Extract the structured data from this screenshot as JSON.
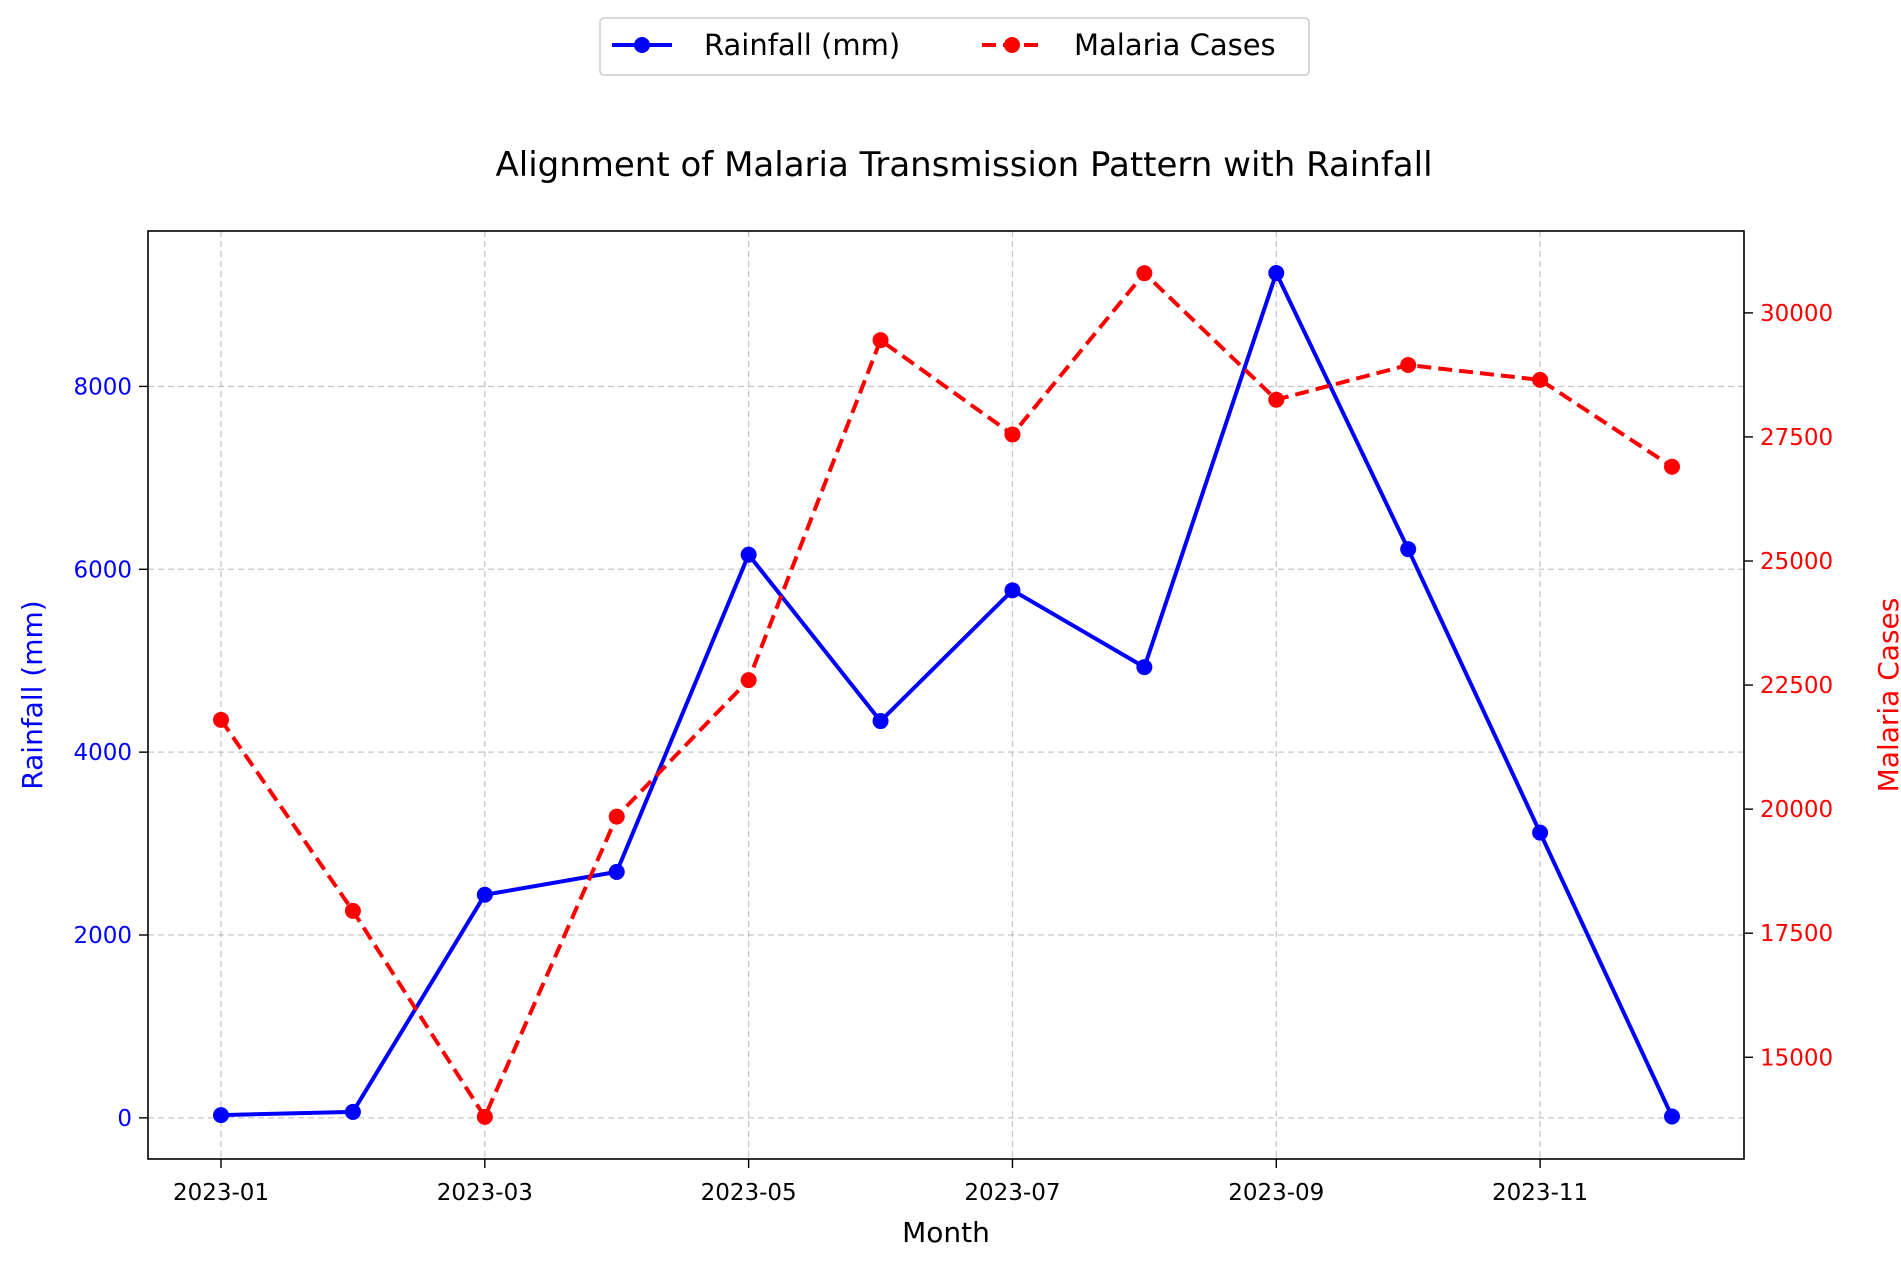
{
  "chart_data": {
    "type": "line",
    "title": "Alignment of Malaria Transmission Pattern with Rainfall",
    "xlabel": "Month",
    "x": [
      "2023-01",
      "2023-02",
      "2023-03",
      "2023-04",
      "2023-05",
      "2023-06",
      "2023-07",
      "2023-08",
      "2023-09",
      "2023-10",
      "2023-11",
      "2023-12"
    ],
    "x_ticks": [
      "2023-01",
      "2023-03",
      "2023-05",
      "2023-07",
      "2023-09",
      "2023-11"
    ],
    "grid": true,
    "legend_position": "top-center",
    "axes": {
      "left": {
        "label": "Rainfall (mm)",
        "color": "#0000ff",
        "ylim": [
          -450,
          9700
        ],
        "ticks": [
          0,
          2000,
          4000,
          6000,
          8000
        ],
        "tick_labels": [
          "0",
          "2000",
          "4000",
          "6000",
          "8000"
        ]
      },
      "right": {
        "label": "Malaria Cases",
        "color": "#ff0000",
        "ylim": [
          12950,
          31650
        ],
        "ticks": [
          15000,
          17500,
          20000,
          22500,
          25000,
          27500,
          30000
        ],
        "tick_labels": [
          "15000",
          "17500",
          "20000",
          "22500",
          "25000",
          "27500",
          "30000"
        ]
      }
    },
    "series": [
      {
        "name": "Rainfall (mm)",
        "axis": "left",
        "color": "#0000ff",
        "style": "solid",
        "values": [
          30,
          65,
          2440,
          2690,
          6160,
          4340,
          5770,
          4930,
          9240,
          6220,
          3120,
          15
        ]
      },
      {
        "name": "Malaria Cases",
        "axis": "right",
        "color": "#ff0000",
        "style": "dashed",
        "values": [
          21800,
          17950,
          13800,
          19850,
          22600,
          29450,
          27550,
          30800,
          28250,
          28950,
          28650,
          26900
        ]
      }
    ]
  }
}
